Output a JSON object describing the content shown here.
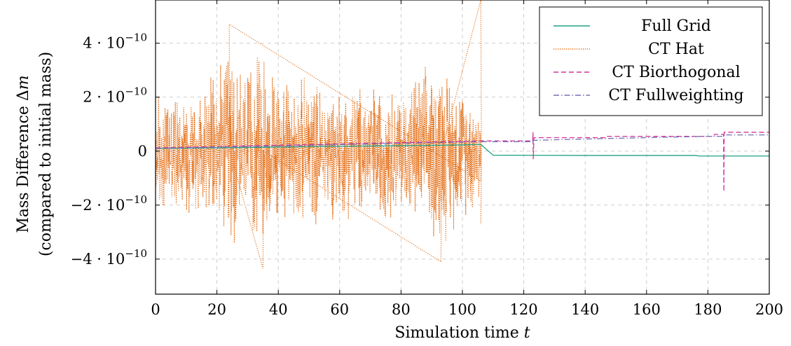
{
  "chart_data": {
    "type": "line",
    "xlabel_prefix": "Simulation time ",
    "xlabel_var": "t",
    "ylabel_line1_prefix": "Mass Difference Δ",
    "ylabel_line1_var": "m",
    "ylabel_line2": "(compared to initial mass)",
    "xlim": [
      0,
      200
    ],
    "ylim": [
      -5.3e-10,
      5.6e-10
    ],
    "grid": true,
    "legend_position": "top-right",
    "x_ticks": [
      {
        "value": 0,
        "label": "0"
      },
      {
        "value": 20,
        "label": "20"
      },
      {
        "value": 40,
        "label": "40"
      },
      {
        "value": 60,
        "label": "60"
      },
      {
        "value": 80,
        "label": "80"
      },
      {
        "value": 100,
        "label": "100"
      },
      {
        "value": 120,
        "label": "120"
      },
      {
        "value": 140,
        "label": "140"
      },
      {
        "value": 160,
        "label": "160"
      },
      {
        "value": 180,
        "label": "180"
      },
      {
        "value": 200,
        "label": "200"
      }
    ],
    "y_ticks": [
      {
        "value": 4e-10,
        "sign": "",
        "mantissa": "4 · 10",
        "exponent": "−10"
      },
      {
        "value": 2e-10,
        "sign": "",
        "mantissa": "2 · 10",
        "exponent": "−10"
      },
      {
        "value": 0,
        "sign": "",
        "mantissa": "0",
        "exponent": ""
      },
      {
        "value": -2e-10,
        "sign": "−",
        "mantissa": "2 · 10",
        "exponent": "−10"
      },
      {
        "value": -4e-10,
        "sign": "−",
        "mantissa": "4 · 10",
        "exponent": "−10"
      }
    ],
    "series": [
      {
        "name": "Full Grid",
        "color": "#1fa187",
        "style": "solid",
        "x": [
          0,
          20,
          40,
          60,
          80,
          100,
          106,
          110,
          140,
          176,
          177,
          200
        ],
        "y": [
          1e-11,
          1.2e-11,
          1.5e-11,
          1.8e-11,
          2e-11,
          2.3e-11,
          2.5e-11,
          -1.5e-11,
          -1.6e-11,
          -1.6e-11,
          -1.8e-11,
          -1.8e-11
        ]
      },
      {
        "name": "CT Hat",
        "color": "#e36a0f",
        "style": "dotted",
        "noise_amplitude_envelope": {
          "x": [
            0,
            5,
            10,
            20,
            24,
            30,
            35,
            40,
            50,
            60,
            70,
            80,
            93,
            100,
            106
          ],
          "amplitude": [
            2.8e-10,
            2.2e-10,
            2.6e-10,
            3e-10,
            4.5e-10,
            3.2e-10,
            4.2e-10,
            2.8e-10,
            3e-10,
            2.6e-10,
            2.8e-10,
            2.6e-10,
            3.8e-10,
            2.6e-10,
            2.4e-10
          ]
        },
        "spikes": [
          {
            "x": 24,
            "y": 4.7e-10
          },
          {
            "x": 35,
            "y": -4.35e-10
          },
          {
            "x": 93,
            "y": -4.1e-10
          },
          {
            "x": 106,
            "y": 5.6e-10
          },
          {
            "x": 106,
            "y": -2.7e-10
          }
        ],
        "x_end": 106
      },
      {
        "name": "CT Biorthogonal",
        "color": "#d4339a",
        "style": "dashed",
        "x": [
          0,
          106,
          122.9,
          123,
          123.1,
          123.3,
          147,
          147.1,
          182,
          182.1,
          185.1,
          185.2,
          185.3,
          200
        ],
        "y": [
          1.2e-11,
          3.8e-11,
          3.8e-11,
          7e-11,
          -3e-11,
          5e-11,
          5e-11,
          5.5e-11,
          5.5e-11,
          6.2e-11,
          6.2e-11,
          -1.5e-10,
          7e-11,
          7e-11
        ]
      },
      {
        "name": "CT Fullweighting",
        "color": "#7570b3",
        "style": "dashdot",
        "x": [
          0,
          106,
          122.9,
          123,
          123.1,
          140,
          180,
          185,
          185.1,
          200
        ],
        "y": [
          1e-11,
          3.5e-11,
          3.5e-11,
          4.5e-11,
          4e-11,
          4.5e-11,
          5.5e-11,
          5.5e-11,
          6e-11,
          6e-11
        ]
      }
    ]
  }
}
